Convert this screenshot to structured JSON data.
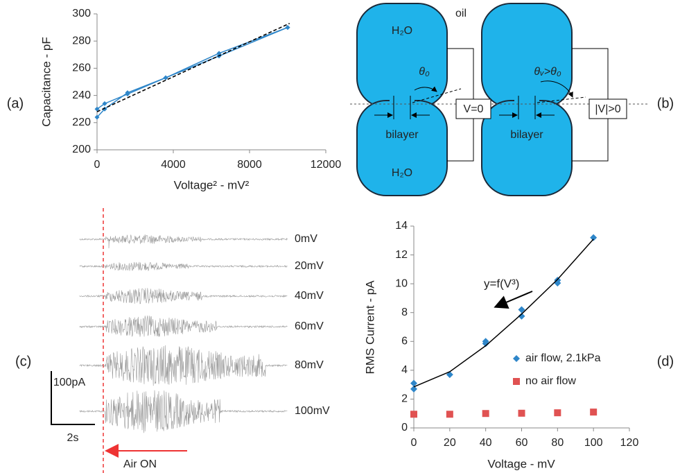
{
  "chart_data": [
    {
      "type": "line",
      "panel_label": "(a)",
      "y_label": "Capacitance - pF",
      "x_label": "Voltage² - mV²",
      "xlim": [
        0,
        12000
      ],
      "xticks": [
        0,
        4000,
        8000,
        12000
      ],
      "ylim": [
        200,
        300
      ],
      "yticks": [
        200,
        220,
        240,
        260,
        280,
        300
      ],
      "series": [
        {
          "color": "#2e86c9",
          "style": "line+markers",
          "x": [
            0,
            400,
            1600,
            3600,
            6400,
            10000
          ],
          "values": [
            230,
            234,
            241,
            253,
            271,
            290
          ]
        },
        {
          "color": "#2e86c9",
          "style": "line+markers",
          "x": [
            0,
            400,
            1600,
            3600,
            6400,
            10000
          ],
          "values": [
            224,
            230,
            242,
            253,
            269,
            290
          ]
        },
        {
          "color": "#000000",
          "style": "dashed",
          "x": [
            0,
            10100
          ],
          "values": [
            228,
            293
          ]
        }
      ]
    },
    {
      "type": "scatter",
      "panel_label": "(d)",
      "y_label": "RMS Current - pA",
      "x_label": "Voltage - mV",
      "xlim": [
        0,
        120
      ],
      "xticks": [
        0,
        20,
        40,
        60,
        80,
        100,
        120
      ],
      "ylim": [
        0,
        14
      ],
      "yticks": [
        0,
        2,
        4,
        6,
        8,
        10,
        12,
        14
      ],
      "annotation": "y=f(V³)",
      "series": [
        {
          "name": "air flow, 2.1kPa",
          "color": "#2e86c9",
          "style": "markers",
          "marker": "diamond",
          "x": [
            0,
            0,
            20,
            40,
            40,
            60,
            60,
            80,
            80,
            100
          ],
          "values": [
            3.1,
            2.7,
            3.7,
            6.0,
            5.85,
            8.2,
            7.75,
            10.25,
            10.05,
            13.2
          ]
        },
        {
          "name": "no air flow",
          "color": "#e05252",
          "style": "markers",
          "marker": "square",
          "x": [
            0,
            20,
            40,
            60,
            80,
            100
          ],
          "values": [
            0.95,
            0.95,
            1.0,
            1.02,
            1.05,
            1.1
          ]
        },
        {
          "color": "#000000",
          "style": "line",
          "x": [
            0,
            20,
            40,
            60,
            80,
            100
          ],
          "values": [
            2.85,
            3.9,
            5.7,
            7.9,
            10.3,
            13.1
          ]
        }
      ]
    }
  ],
  "diagram": {
    "panel_label": "(b)",
    "medium": "oil",
    "configurations": [
      {
        "top_label": "H₂O",
        "bottom_label": "H₂O",
        "angle_label": "θ₀",
        "bilayer_label": "bilayer",
        "voltage_label": "V=0"
      },
      {
        "angle_label": "θᵥ>θ₀",
        "bilayer_label": "bilayer",
        "voltage_label": "|V|>0"
      }
    ]
  },
  "traces": {
    "panel_label": "(c)",
    "labels": [
      "0mV",
      "20mV",
      "40mV",
      "60mV",
      "80mV",
      "100mV"
    ],
    "scale_y": "100pA",
    "scale_x": "2s",
    "annotation": "Air ON"
  }
}
